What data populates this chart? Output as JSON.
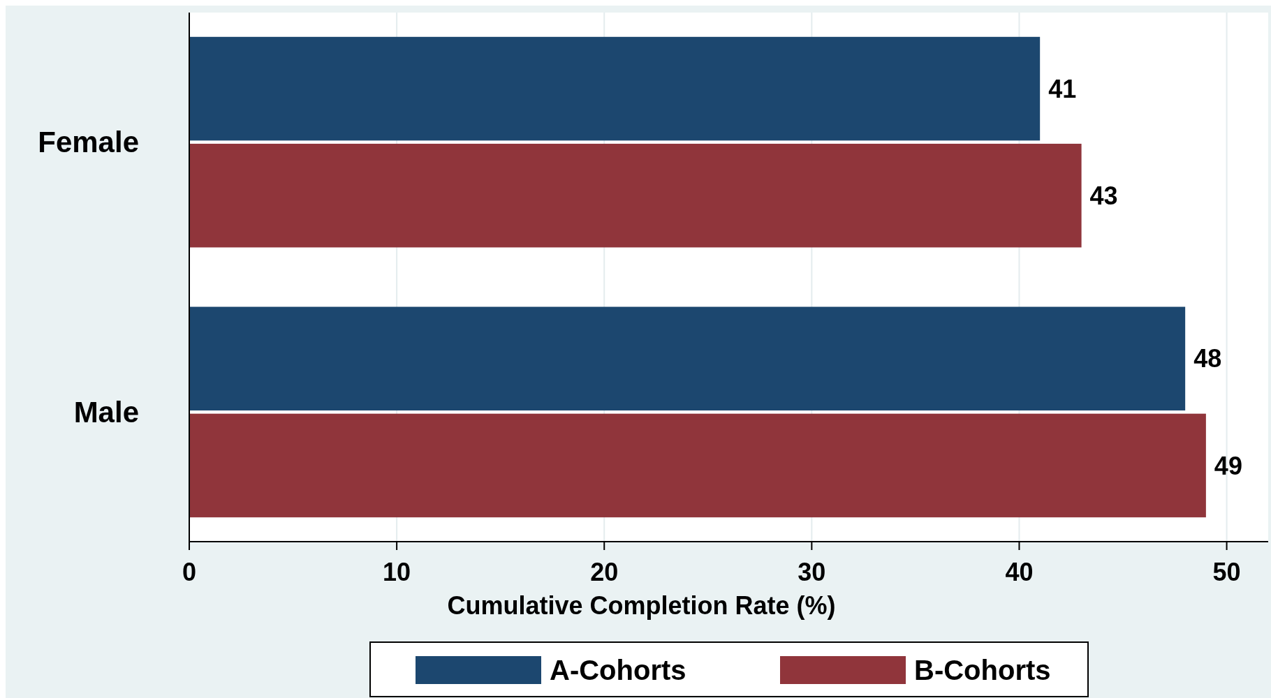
{
  "chart_data": {
    "type": "bar",
    "orientation": "horizontal",
    "xlabel": "Cumulative Completion Rate (%)",
    "categories": [
      "Female",
      "Male"
    ],
    "series": [
      {
        "name": "A-Cohorts",
        "color": "#1c476f",
        "values": [
          41,
          48
        ]
      },
      {
        "name": "B-Cohorts",
        "color": "#90353b",
        "values": [
          43,
          49
        ]
      }
    ],
    "xlim": [
      0,
      52
    ],
    "xticks": [
      0,
      10,
      20,
      30,
      40,
      50
    ],
    "grid": "x",
    "legend": "bottom",
    "data_labels": true
  }
}
